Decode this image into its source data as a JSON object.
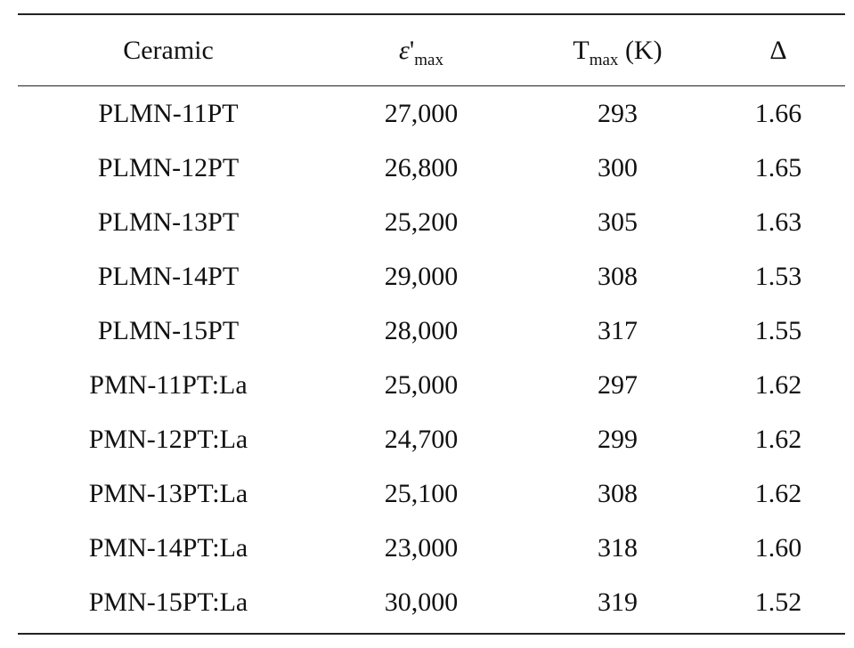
{
  "table": {
    "headers": {
      "ceramic": "Ceramic",
      "eps_symbol": "ε",
      "eps_prime": "'",
      "eps_sub": "max",
      "t_symbol": "T",
      "t_sub": "max",
      "t_unit": " (K)",
      "delta": "Δ"
    },
    "rows": [
      {
        "ceramic": "PLMN-11PT",
        "eps_max": "27,000",
        "t_max": "293",
        "delta": "1.66"
      },
      {
        "ceramic": "PLMN-12PT",
        "eps_max": "26,800",
        "t_max": "300",
        "delta": "1.65"
      },
      {
        "ceramic": "PLMN-13PT",
        "eps_max": "25,200",
        "t_max": "305",
        "delta": "1.63"
      },
      {
        "ceramic": "PLMN-14PT",
        "eps_max": "29,000",
        "t_max": "308",
        "delta": "1.53"
      },
      {
        "ceramic": "PLMN-15PT",
        "eps_max": "28,000",
        "t_max": "317",
        "delta": "1.55"
      },
      {
        "ceramic": "PMN-11PT:La",
        "eps_max": "25,000",
        "t_max": "297",
        "delta": "1.62"
      },
      {
        "ceramic": "PMN-12PT:La",
        "eps_max": "24,700",
        "t_max": "299",
        "delta": "1.62"
      },
      {
        "ceramic": "PMN-13PT:La",
        "eps_max": "25,100",
        "t_max": "308",
        "delta": "1.62"
      },
      {
        "ceramic": "PMN-14PT:La",
        "eps_max": "23,000",
        "t_max": "318",
        "delta": "1.60"
      },
      {
        "ceramic": "PMN-15PT:La",
        "eps_max": "30,000",
        "t_max": "319",
        "delta": "1.52"
      }
    ]
  }
}
